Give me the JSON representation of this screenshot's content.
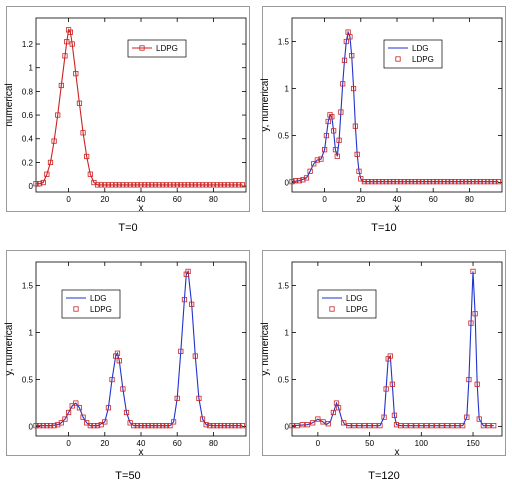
{
  "captions": [
    "T=0",
    "T=10",
    "T=50",
    "T=120"
  ],
  "chart_data": [
    {
      "type": "line",
      "caption": "T=0",
      "xlabel": "x",
      "ylabel": "numerical",
      "xlim": [
        -18,
        98
      ],
      "ylim": [
        -0.05,
        1.42
      ],
      "xticks": [
        0,
        20,
        40,
        60,
        80
      ],
      "xtick_labels": [
        "0",
        "20",
        "40",
        "60",
        "80"
      ],
      "yticks": [
        0,
        0.2,
        0.4,
        0.6,
        0.8,
        1,
        1.2
      ],
      "ytick_labels": [
        "0",
        "0.2",
        "0.4",
        "0.6",
        "0.8",
        "1",
        "1.2"
      ],
      "legend_position": "top-right",
      "series": [
        {
          "name": "LDPG",
          "color": "#cc2222",
          "style": "line+square",
          "x": [
            -18,
            -16,
            -14,
            -12,
            -10,
            -8,
            -6,
            -4,
            -2,
            -1,
            0,
            1,
            2,
            4,
            6,
            8,
            10,
            12,
            14,
            16,
            18,
            20,
            22,
            24,
            26,
            28,
            30,
            32,
            34,
            36,
            38,
            40,
            42,
            44,
            46,
            48,
            50,
            52,
            54,
            56,
            58,
            60,
            62,
            64,
            66,
            68,
            70,
            72,
            74,
            76,
            78,
            80,
            82,
            84,
            86,
            88,
            90,
            92,
            94,
            96
          ],
          "y": [
            0.02,
            0.02,
            0.03,
            0.1,
            0.2,
            0.38,
            0.6,
            0.85,
            1.1,
            1.22,
            1.32,
            1.3,
            1.2,
            0.95,
            0.7,
            0.45,
            0.25,
            0.1,
            0.03,
            0.01,
            0.01,
            0.01,
            0.01,
            0.01,
            0.01,
            0.01,
            0.01,
            0.01,
            0.01,
            0.01,
            0.01,
            0.01,
            0.01,
            0.01,
            0.01,
            0.01,
            0.01,
            0.01,
            0.01,
            0.01,
            0.01,
            0.01,
            0.01,
            0.01,
            0.01,
            0.01,
            0.01,
            0.01,
            0.01,
            0.01,
            0.01,
            0.01,
            0.01,
            0.01,
            0.01,
            0.01,
            0.01,
            0.01,
            0.01,
            0.01
          ]
        }
      ]
    },
    {
      "type": "line",
      "caption": "T=10",
      "xlabel": "x",
      "ylabel": "y, numerical",
      "xlim": [
        -18,
        98
      ],
      "ylim": [
        -0.1,
        1.75
      ],
      "xticks": [
        0,
        20,
        40,
        60,
        80
      ],
      "xtick_labels": [
        "0",
        "20",
        "40",
        "60",
        "80"
      ],
      "yticks": [
        0,
        0.5,
        1,
        1.5
      ],
      "ytick_labels": [
        "0",
        "0.5",
        "1",
        "1.5"
      ],
      "legend_position": "top-right",
      "series": [
        {
          "name": "LDG",
          "color": "#2233cc",
          "style": "line",
          "x": [
            -18,
            -14,
            -10,
            -8,
            -6,
            -4,
            -2,
            0,
            1,
            2,
            3,
            4,
            5,
            6,
            7,
            8,
            9,
            10,
            11,
            12,
            13,
            14,
            15,
            16,
            17,
            18,
            19,
            20,
            21,
            22,
            24,
            28,
            40,
            60,
            80,
            96
          ],
          "y": [
            0.01,
            0.02,
            0.05,
            0.12,
            0.2,
            0.24,
            0.25,
            0.35,
            0.5,
            0.65,
            0.72,
            0.7,
            0.55,
            0.35,
            0.28,
            0.45,
            0.75,
            1.05,
            1.3,
            1.5,
            1.6,
            1.55,
            1.35,
            1.0,
            0.6,
            0.3,
            0.12,
            0.04,
            0.01,
            0.01,
            0.01,
            0.01,
            0.01,
            0.01,
            0.01,
            0.01
          ]
        },
        {
          "name": "LDPG",
          "color": "#cc2222",
          "style": "square",
          "x": [
            -18,
            -16,
            -14,
            -12,
            -10,
            -8,
            -6,
            -4,
            -2,
            0,
            1,
            2,
            3,
            4,
            5,
            6,
            7,
            8,
            9,
            10,
            11,
            12,
            13,
            14,
            15,
            16,
            17,
            18,
            19,
            20,
            22,
            24,
            26,
            28,
            30,
            32,
            34,
            36,
            38,
            40,
            42,
            44,
            46,
            48,
            50,
            52,
            54,
            56,
            58,
            60,
            62,
            64,
            66,
            68,
            70,
            72,
            74,
            76,
            78,
            80,
            82,
            84,
            86,
            88,
            90,
            92,
            94,
            96
          ],
          "y": [
            0.01,
            0.02,
            0.02,
            0.03,
            0.05,
            0.12,
            0.2,
            0.24,
            0.25,
            0.35,
            0.5,
            0.65,
            0.72,
            0.7,
            0.55,
            0.35,
            0.28,
            0.45,
            0.75,
            1.05,
            1.3,
            1.5,
            1.6,
            1.55,
            1.35,
            1.0,
            0.6,
            0.3,
            0.12,
            0.04,
            0.01,
            0.01,
            0.01,
            0.01,
            0.01,
            0.01,
            0.01,
            0.01,
            0.01,
            0.01,
            0.01,
            0.01,
            0.01,
            0.01,
            0.01,
            0.01,
            0.01,
            0.01,
            0.01,
            0.01,
            0.01,
            0.01,
            0.01,
            0.01,
            0.01,
            0.01,
            0.01,
            0.01,
            0.01,
            0.01,
            0.01,
            0.01,
            0.01,
            0.01,
            0.01,
            0.01,
            0.01,
            0.01
          ]
        }
      ]
    },
    {
      "type": "line",
      "caption": "T=50",
      "xlabel": "x",
      "ylabel": "y, numerical",
      "xlim": [
        -18,
        98
      ],
      "ylim": [
        -0.1,
        1.75
      ],
      "xticks": [
        0,
        20,
        40,
        60,
        80
      ],
      "xtick_labels": [
        "0",
        "20",
        "40",
        "60",
        "80"
      ],
      "yticks": [
        0,
        0.5,
        1,
        1.5
      ],
      "ytick_labels": [
        "0",
        "0.5",
        "1",
        "1.5"
      ],
      "legend_position": "top-left",
      "series": [
        {
          "name": "LDG",
          "color": "#2233cc",
          "style": "line",
          "x": [
            -18,
            -10,
            -6,
            -4,
            -2,
            0,
            2,
            4,
            6,
            8,
            10,
            12,
            16,
            20,
            22,
            24,
            26,
            27,
            28,
            30,
            32,
            34,
            36,
            40,
            50,
            56,
            58,
            60,
            62,
            64,
            65,
            66,
            68,
            70,
            72,
            74,
            76,
            80,
            96
          ],
          "y": [
            0.01,
            0.01,
            0.02,
            0.04,
            0.08,
            0.15,
            0.22,
            0.25,
            0.2,
            0.1,
            0.04,
            0.01,
            0.01,
            0.05,
            0.2,
            0.5,
            0.75,
            0.78,
            0.7,
            0.4,
            0.15,
            0.04,
            0.01,
            0.01,
            0.01,
            0.01,
            0.05,
            0.3,
            0.8,
            1.35,
            1.62,
            1.65,
            1.3,
            0.75,
            0.3,
            0.08,
            0.02,
            0.01,
            0.01
          ]
        },
        {
          "name": "LDPG",
          "color": "#cc2222",
          "style": "square",
          "x": [
            -18,
            -16,
            -14,
            -12,
            -10,
            -8,
            -6,
            -4,
            -2,
            0,
            2,
            4,
            6,
            8,
            10,
            12,
            14,
            16,
            18,
            20,
            22,
            24,
            26,
            27,
            28,
            30,
            32,
            34,
            36,
            38,
            40,
            42,
            44,
            46,
            48,
            50,
            52,
            54,
            56,
            58,
            60,
            62,
            64,
            65,
            66,
            68,
            70,
            72,
            74,
            76,
            78,
            80,
            82,
            84,
            86,
            88,
            90,
            92,
            94,
            96
          ],
          "y": [
            0.01,
            0.01,
            0.01,
            0.01,
            0.01,
            0.01,
            0.02,
            0.04,
            0.08,
            0.15,
            0.22,
            0.25,
            0.2,
            0.1,
            0.04,
            0.01,
            0.01,
            0.01,
            0.02,
            0.05,
            0.2,
            0.5,
            0.75,
            0.78,
            0.7,
            0.4,
            0.15,
            0.04,
            0.01,
            0.01,
            0.01,
            0.01,
            0.01,
            0.01,
            0.01,
            0.01,
            0.01,
            0.01,
            0.01,
            0.05,
            0.3,
            0.8,
            1.35,
            1.62,
            1.65,
            1.3,
            0.75,
            0.3,
            0.08,
            0.02,
            0.01,
            0.01,
            0.01,
            0.01,
            0.01,
            0.01,
            0.01,
            0.01,
            0.01,
            0.01
          ]
        }
      ]
    },
    {
      "type": "line",
      "caption": "T=120",
      "xlabel": "x",
      "ylabel": "y, numerical",
      "xlim": [
        -25,
        178
      ],
      "ylim": [
        -0.1,
        1.75
      ],
      "xticks": [
        0,
        50,
        100,
        150
      ],
      "xtick_labels": [
        "0",
        "50",
        "100",
        "150"
      ],
      "yticks": [
        0,
        0.5,
        1,
        1.5
      ],
      "ytick_labels": [
        "0",
        "0.5",
        "1",
        "1.5"
      ],
      "legend_position": "top-left",
      "series": [
        {
          "name": "LDG",
          "color": "#2233cc",
          "style": "line",
          "x": [
            -25,
            -10,
            -5,
            0,
            5,
            8,
            12,
            15,
            18,
            20,
            23,
            26,
            30,
            60,
            64,
            66,
            68,
            70,
            72,
            74,
            76,
            80,
            140,
            144,
            146,
            148,
            150,
            152,
            154,
            156,
            160,
            170
          ],
          "y": [
            0.01,
            0.02,
            0.04,
            0.08,
            0.05,
            0.02,
            0.05,
            0.15,
            0.25,
            0.2,
            0.08,
            0.02,
            0.01,
            0.01,
            0.1,
            0.4,
            0.72,
            0.75,
            0.45,
            0.12,
            0.02,
            0.01,
            0.01,
            0.1,
            0.5,
            1.1,
            1.65,
            1.2,
            0.45,
            0.08,
            0.01,
            0.01
          ]
        },
        {
          "name": "LDPG",
          "color": "#cc2222",
          "style": "square",
          "x": [
            -25,
            -20,
            -15,
            -10,
            -5,
            0,
            5,
            10,
            15,
            18,
            20,
            25,
            30,
            35,
            40,
            45,
            50,
            55,
            60,
            64,
            66,
            68,
            70,
            72,
            74,
            76,
            80,
            85,
            90,
            95,
            100,
            105,
            110,
            115,
            120,
            125,
            130,
            135,
            140,
            144,
            146,
            148,
            150,
            152,
            154,
            156,
            160,
            165,
            170
          ],
          "y": [
            0.01,
            0.01,
            0.02,
            0.02,
            0.04,
            0.08,
            0.05,
            0.03,
            0.15,
            0.25,
            0.2,
            0.04,
            0.01,
            0.01,
            0.01,
            0.01,
            0.01,
            0.01,
            0.01,
            0.1,
            0.4,
            0.72,
            0.75,
            0.45,
            0.12,
            0.02,
            0.01,
            0.01,
            0.01,
            0.01,
            0.01,
            0.01,
            0.01,
            0.01,
            0.01,
            0.01,
            0.01,
            0.01,
            0.01,
            0.1,
            0.5,
            1.1,
            1.65,
            1.2,
            0.45,
            0.08,
            0.01,
            0.01,
            0.01
          ]
        }
      ]
    }
  ]
}
